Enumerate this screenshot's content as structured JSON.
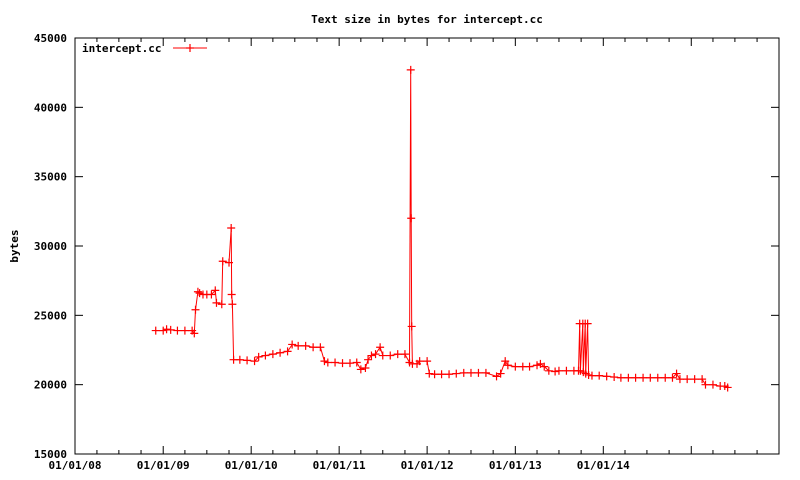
{
  "chart_data": {
    "type": "line",
    "title": "Text size in bytes for intercept.cc",
    "xlabel": "",
    "ylabel": "bytes",
    "ylim": [
      15000,
      45000
    ],
    "yticks": [
      15000,
      20000,
      25000,
      30000,
      35000,
      40000,
      45000
    ],
    "ytick_labels": [
      "15000",
      "20000",
      "25000",
      "30000",
      "35000",
      "40000",
      "45000"
    ],
    "xlim": [
      "2008-01-01",
      "2015-12-31"
    ],
    "xticks": [
      "2008-01-01",
      "2009-01-01",
      "2010-01-01",
      "2011-01-01",
      "2012-01-01",
      "2013-01-01",
      "2014-01-01"
    ],
    "xtick_labels": [
      "01/01/08",
      "01/01/09",
      "01/01/10",
      "01/01/11",
      "01/01/12",
      "01/01/13",
      "01/01/14"
    ],
    "legend": {
      "position": "top-left"
    },
    "color": "#ff0000",
    "series": [
      {
        "name": "intercept.cc",
        "points": [
          [
            "2008-12-01",
            23900
          ],
          [
            "2009-01-01",
            23900
          ],
          [
            "2009-01-15",
            24000
          ],
          [
            "2009-02-01",
            23950
          ],
          [
            "2009-03-01",
            23900
          ],
          [
            "2009-04-01",
            23900
          ],
          [
            "2009-05-01",
            23900
          ],
          [
            "2009-05-10",
            23700
          ],
          [
            "2009-05-15",
            25400
          ],
          [
            "2009-05-25",
            26700
          ],
          [
            "2009-06-01",
            26600
          ],
          [
            "2009-06-15",
            26500
          ],
          [
            "2009-07-01",
            26500
          ],
          [
            "2009-07-20",
            26500
          ],
          [
            "2009-08-05",
            26800
          ],
          [
            "2009-08-10",
            25900
          ],
          [
            "2009-09-01",
            25800
          ],
          [
            "2009-09-05",
            28900
          ],
          [
            "2009-10-01",
            28800
          ],
          [
            "2009-10-10",
            31300
          ],
          [
            "2009-10-12",
            26500
          ],
          [
            "2009-10-15",
            25800
          ],
          [
            "2009-10-20",
            21800
          ],
          [
            "2009-11-15",
            21800
          ],
          [
            "2009-12-15",
            21750
          ],
          [
            "2010-01-15",
            21700
          ],
          [
            "2010-02-01",
            22000
          ],
          [
            "2010-03-01",
            22100
          ],
          [
            "2010-04-01",
            22200
          ],
          [
            "2010-05-01",
            22300
          ],
          [
            "2010-06-01",
            22400
          ],
          [
            "2010-06-20",
            22900
          ],
          [
            "2010-07-15",
            22800
          ],
          [
            "2010-08-15",
            22800
          ],
          [
            "2010-09-15",
            22700
          ],
          [
            "2010-10-15",
            22700
          ],
          [
            "2010-11-01",
            21700
          ],
          [
            "2010-11-15",
            21600
          ],
          [
            "2010-12-15",
            21600
          ],
          [
            "2011-01-15",
            21550
          ],
          [
            "2011-02-15",
            21550
          ],
          [
            "2011-03-15",
            21600
          ],
          [
            "2011-04-01",
            21100
          ],
          [
            "2011-04-20",
            21200
          ],
          [
            "2011-05-01",
            21800
          ],
          [
            "2011-05-15",
            22100
          ],
          [
            "2011-06-01",
            22200
          ],
          [
            "2011-06-20",
            22700
          ],
          [
            "2011-07-01",
            22100
          ],
          [
            "2011-08-01",
            22100
          ],
          [
            "2011-09-01",
            22200
          ],
          [
            "2011-10-01",
            22200
          ],
          [
            "2011-10-20",
            21600
          ],
          [
            "2011-10-25",
            42700
          ],
          [
            "2011-10-27",
            32000
          ],
          [
            "2011-10-29",
            24200
          ],
          [
            "2011-11-01",
            21500
          ],
          [
            "2011-11-20",
            21500
          ],
          [
            "2011-12-01",
            21700
          ],
          [
            "2012-01-01",
            21700
          ],
          [
            "2012-01-10",
            20800
          ],
          [
            "2012-02-01",
            20750
          ],
          [
            "2012-03-01",
            20750
          ],
          [
            "2012-04-01",
            20750
          ],
          [
            "2012-05-01",
            20800
          ],
          [
            "2012-06-01",
            20850
          ],
          [
            "2012-07-01",
            20850
          ],
          [
            "2012-08-01",
            20850
          ],
          [
            "2012-09-01",
            20850
          ],
          [
            "2012-10-15",
            20600
          ],
          [
            "2012-11-01",
            20800
          ],
          [
            "2012-11-20",
            21700
          ],
          [
            "2012-12-01",
            21400
          ],
          [
            "2013-01-01",
            21300
          ],
          [
            "2013-02-01",
            21300
          ],
          [
            "2013-03-01",
            21300
          ],
          [
            "2013-04-01",
            21400
          ],
          [
            "2013-04-15",
            21500
          ],
          [
            "2013-05-01",
            21300
          ],
          [
            "2013-05-20",
            21000
          ],
          [
            "2013-06-15",
            20950
          ],
          [
            "2013-07-01",
            21000
          ],
          [
            "2013-08-01",
            21000
          ],
          [
            "2013-09-01",
            21000
          ],
          [
            "2013-09-20",
            21000
          ],
          [
            "2013-09-25",
            24400
          ],
          [
            "2013-09-28",
            21000
          ],
          [
            "2013-10-08",
            24400
          ],
          [
            "2013-10-10",
            20900
          ],
          [
            "2013-10-18",
            24400
          ],
          [
            "2013-10-20",
            20800
          ],
          [
            "2013-10-28",
            24400
          ],
          [
            "2013-11-01",
            20700
          ],
          [
            "2013-11-15",
            20650
          ],
          [
            "2013-12-15",
            20650
          ],
          [
            "2014-01-15",
            20600
          ],
          [
            "2014-02-15",
            20550
          ],
          [
            "2014-03-15",
            20500
          ],
          [
            "2014-04-15",
            20500
          ],
          [
            "2014-05-15",
            20500
          ],
          [
            "2014-06-15",
            20500
          ],
          [
            "2014-07-15",
            20500
          ],
          [
            "2014-08-15",
            20500
          ],
          [
            "2014-09-15",
            20500
          ],
          [
            "2014-10-15",
            20500
          ],
          [
            "2014-11-01",
            20800
          ],
          [
            "2014-11-15",
            20400
          ],
          [
            "2014-12-15",
            20400
          ],
          [
            "2015-01-15",
            20400
          ],
          [
            "2015-02-15",
            20400
          ],
          [
            "2015-03-01",
            20000
          ],
          [
            "2015-04-01",
            20000
          ],
          [
            "2015-05-01",
            19900
          ],
          [
            "2015-05-20",
            19900
          ],
          [
            "2015-06-01",
            19800
          ]
        ]
      }
    ]
  }
}
